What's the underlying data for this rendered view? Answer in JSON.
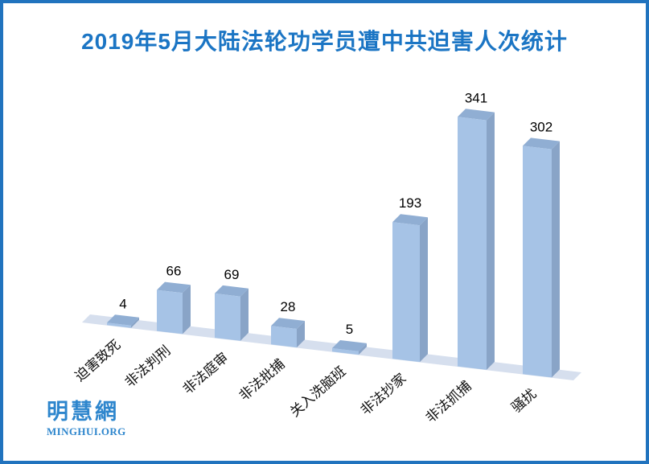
{
  "title": {
    "text": "2019年5月大陆法轮功学员遭中共迫害人次统计",
    "color": "#1b75c4"
  },
  "frame": {
    "border_color": "#2173be"
  },
  "logo": {
    "cjk": "明慧網",
    "latin": "MINGHUI.ORG",
    "color": "#2e86cd"
  },
  "chart_data": {
    "type": "bar",
    "style": "3d-column",
    "title": "2019年5月大陆法轮功学员遭中共迫害人次统计",
    "categories": [
      "迫害致死",
      "非法判刑",
      "非法庭审",
      "非法批捕",
      "关入洗脑班",
      "非法抄家",
      "非法抓捕",
      "骚扰"
    ],
    "values": [
      4,
      66,
      69,
      28,
      5,
      193,
      341,
      302
    ],
    "data_labels": [
      4,
      66,
      69,
      28,
      5,
      193,
      341,
      302
    ],
    "xlabel": "",
    "ylabel": "",
    "legend": "none",
    "axes": "hidden",
    "grid": "off",
    "colors": {
      "bar_front": "#a6c3e6",
      "bar_top": "#90aed3",
      "bar_side": "#89a4c7",
      "bar_side_dark": "#7b93b7",
      "floor": "#d6dfee",
      "value_label": "#000000",
      "category_label": "#111111"
    }
  }
}
